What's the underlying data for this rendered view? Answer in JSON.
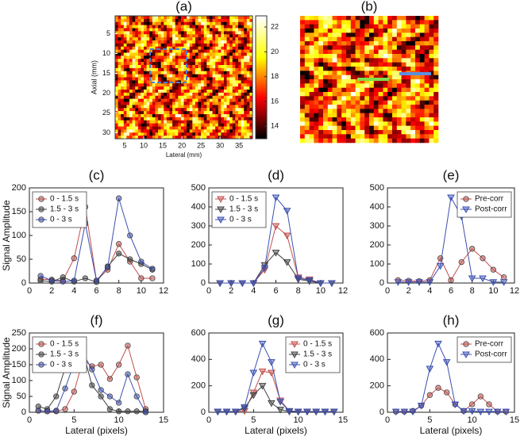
{
  "chart_data": [
    {
      "type": "heatmap",
      "title": "(a)",
      "xlabel": "Lateral (mm)",
      "ylabel": "Axial (mm)",
      "xlim": [
        2.5,
        38.5
      ],
      "ylim": [
        0.5,
        31.5
      ],
      "y_inverted": true,
      "xticks": [
        5,
        10,
        15,
        20,
        25,
        30,
        35
      ],
      "yticks": [
        5,
        10,
        15,
        20,
        25,
        30
      ],
      "colormap": "hot",
      "clim": [
        13,
        22.9
      ],
      "cticks": [
        14,
        16,
        18,
        20,
        22
      ]
    },
    {
      "type": "image",
      "title": "(b)"
    },
    {
      "type": "line",
      "title": "(c)",
      "ylabel": "Signal Amplitude",
      "legend": "upper left",
      "x": [
        1,
        2,
        3,
        4,
        5,
        6,
        7,
        8,
        9,
        10,
        11
      ],
      "xlim": [
        0,
        12
      ],
      "xticks": [
        0,
        2,
        4,
        6,
        8,
        10,
        12
      ],
      "ylim": [
        0,
        200
      ],
      "yticks": [
        0,
        50,
        100,
        150,
        200
      ],
      "series": [
        {
          "name": "0 - 1.5 s",
          "color": "#c0504d",
          "marker": "circle",
          "values": [
            8,
            7,
            5,
            52,
            160,
            5,
            28,
            82,
            45,
            10,
            10
          ]
        },
        {
          "name": "1.5 - 3 s",
          "color": "#404040",
          "marker": "circle",
          "values": [
            5,
            3,
            12,
            3,
            10,
            2,
            35,
            62,
            50,
            40,
            28
          ]
        },
        {
          "name": "0 - 3 s",
          "color": "#3a4fb0",
          "marker": "circle",
          "values": [
            15,
            5,
            3,
            5,
            125,
            5,
            33,
            178,
            100,
            45,
            30
          ]
        }
      ]
    },
    {
      "type": "line",
      "title": "(d)",
      "legend": "upper left",
      "x": [
        1,
        2,
        3,
        4,
        5,
        6,
        7,
        8,
        9,
        10,
        11
      ],
      "xlim": [
        0,
        12
      ],
      "xticks": [
        0,
        2,
        4,
        6,
        8,
        10,
        12
      ],
      "ylim": [
        0,
        500
      ],
      "yticks": [
        0,
        100,
        200,
        300,
        400,
        500
      ],
      "series": [
        {
          "name": "0 - 1.5 s",
          "color": "#c0504d",
          "marker": "triangle",
          "values": [
            0,
            0,
            0,
            0,
            70,
            300,
            250,
            30,
            20,
            0,
            0
          ]
        },
        {
          "name": "1.5 - 3 s",
          "color": "#404040",
          "marker": "triangle",
          "values": [
            0,
            0,
            0,
            0,
            95,
            160,
            110,
            20,
            10,
            0,
            0
          ]
        },
        {
          "name": "0 - 3 s",
          "color": "#3a4fb0",
          "marker": "triangle",
          "values": [
            0,
            0,
            0,
            0,
            80,
            450,
            380,
            25,
            15,
            0,
            0
          ]
        }
      ]
    },
    {
      "type": "line",
      "title": "(e)",
      "legend": "upper right",
      "x": [
        1,
        2,
        3,
        4,
        5,
        6,
        7,
        8,
        9,
        10,
        11
      ],
      "xlim": [
        0,
        12
      ],
      "xticks": [
        0,
        2,
        4,
        6,
        8,
        10,
        12
      ],
      "ylim": [
        0,
        500
      ],
      "yticks": [
        0,
        100,
        200,
        300,
        400,
        500
      ],
      "series": [
        {
          "name": "Pre-corr",
          "color": "#c0504d",
          "marker": "circle",
          "values": [
            15,
            12,
            10,
            15,
            130,
            15,
            110,
            180,
            130,
            70,
            30
          ]
        },
        {
          "name": "Post-corr",
          "color": "#3a4fb0",
          "marker": "triangle",
          "values": [
            5,
            5,
            5,
            5,
            90,
            450,
            350,
            25,
            25,
            5,
            5
          ]
        }
      ]
    },
    {
      "type": "line",
      "title": "(f)",
      "ylabel": "Signal Amplitude",
      "xlabel": "Lateral (pixels)",
      "legend": "upper left",
      "x": [
        1,
        2,
        3,
        4,
        5,
        6,
        7,
        8,
        9,
        10,
        11,
        12,
        13
      ],
      "xlim": [
        0,
        15
      ],
      "xticks": [
        0,
        5,
        10,
        15
      ],
      "ylim": [
        0,
        250
      ],
      "yticks": [
        0,
        50,
        100,
        150,
        200,
        250
      ],
      "series": [
        {
          "name": "0 - 1.5 s",
          "color": "#c0504d",
          "marker": "circle",
          "values": [
            5,
            3,
            3,
            10,
            65,
            165,
            145,
            150,
            105,
            150,
            210,
            110,
            10
          ]
        },
        {
          "name": "1.5 - 3 s",
          "color": "#404040",
          "marker": "circle",
          "values": [
            18,
            10,
            50,
            140,
            200,
            190,
            85,
            50,
            10,
            3,
            3,
            3,
            3
          ]
        },
        {
          "name": "0 - 3 s",
          "color": "#3a4fb0",
          "marker": "circle",
          "values": [
            5,
            3,
            5,
            75,
            155,
            185,
            135,
            70,
            50,
            30,
            120,
            50,
            0
          ]
        }
      ]
    },
    {
      "type": "line",
      "title": "(g)",
      "xlabel": "Lateral (pixels)",
      "legend": "upper right",
      "x": [
        1,
        2,
        3,
        4,
        5,
        6,
        7,
        8,
        9,
        10,
        11,
        12,
        13,
        14
      ],
      "xlim": [
        0,
        15
      ],
      "xticks": [
        0,
        5,
        10,
        15
      ],
      "ylim": [
        0,
        600
      ],
      "yticks": [
        0,
        200,
        400,
        600
      ],
      "series": [
        {
          "name": "0 - 1.5 s",
          "color": "#c0504d",
          "marker": "triangle",
          "values": [
            5,
            5,
            5,
            10,
            150,
            310,
            300,
            90,
            10,
            5,
            5,
            5,
            5,
            5
          ]
        },
        {
          "name": "1.5 - 3 s",
          "color": "#404040",
          "marker": "triangle",
          "values": [
            5,
            5,
            5,
            30,
            130,
            200,
            70,
            20,
            5,
            5,
            5,
            5,
            5,
            5
          ]
        },
        {
          "name": "0 - 3 s",
          "color": "#3a4fb0",
          "marker": "triangle",
          "values": [
            5,
            5,
            5,
            40,
            300,
            520,
            380,
            80,
            10,
            5,
            5,
            5,
            5,
            5
          ]
        }
      ]
    },
    {
      "type": "line",
      "title": "(h)",
      "xlabel": "Lateral (pixels)",
      "legend": "upper right",
      "x": [
        1,
        2,
        3,
        4,
        5,
        6,
        7,
        8,
        9,
        10,
        11,
        12,
        13,
        14
      ],
      "xlim": [
        0,
        15
      ],
      "xticks": [
        0,
        5,
        10,
        15
      ],
      "ylim": [
        0,
        600
      ],
      "yticks": [
        0,
        200,
        400,
        600
      ],
      "series": [
        {
          "name": "Pre-corr",
          "color": "#c0504d",
          "marker": "circle",
          "values": [
            5,
            5,
            10,
            50,
            130,
            185,
            150,
            60,
            10,
            60,
            120,
            60,
            5,
            5
          ]
        },
        {
          "name": "Post-corr",
          "color": "#3a4fb0",
          "marker": "triangle",
          "values": [
            5,
            5,
            5,
            50,
            330,
            520,
            380,
            60,
            10,
            10,
            5,
            5,
            5,
            5
          ]
        }
      ]
    }
  ]
}
